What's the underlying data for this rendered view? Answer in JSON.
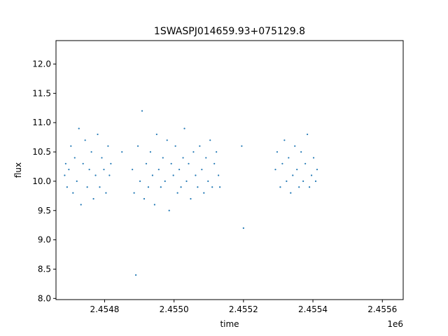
{
  "chart_data": {
    "type": "scatter",
    "title": "1SWASPJ014659.93+075129.8",
    "xlabel": "time",
    "ylabel": "flux",
    "x_offset_label": "1e6",
    "xlim": [
      2454660,
      2455660
    ],
    "ylim": [
      7.98,
      12.4
    ],
    "x_ticks": [
      2454800,
      2455000,
      2455200,
      2455400,
      2455600
    ],
    "x_tick_labels": [
      "2.4548",
      "2.4550",
      "2.4552",
      "2.4554",
      "2.4556"
    ],
    "y_ticks": [
      8.0,
      8.5,
      9.0,
      9.5,
      10.0,
      10.5,
      11.0,
      11.5,
      12.0
    ],
    "y_tick_labels": [
      "8.0",
      "8.5",
      "9.0",
      "9.5",
      "10.0",
      "10.5",
      "11.0",
      "11.5",
      "12.0"
    ],
    "grid": false,
    "legend": "none",
    "marker_color": "#1f77b4",
    "series": [
      {
        "x": [
          2454685,
          2454688,
          2454692,
          2454697,
          2454703,
          2454709,
          2454714,
          2454720,
          2454726,
          2454732,
          2454738,
          2454744,
          2454750,
          2454756,
          2454762,
          2454768,
          2454774,
          2454780,
          2454786,
          2454792,
          2454798,
          2454804,
          2454810,
          2454814,
          2454818,
          2454850,
          2454880,
          2454885,
          2454890,
          2454896,
          2454902,
          2454908,
          2454914,
          2454920,
          2454926,
          2454932,
          2454938,
          2454944,
          2454950,
          2454956,
          2454962,
          2454968,
          2454974,
          2454980,
          2454986,
          2454992,
          2454998,
          2455004,
          2455010,
          2455015,
          2455020,
          2455026,
          2455030,
          2455036,
          2455042,
          2455048,
          2455056,
          2455062,
          2455068,
          2455074,
          2455080,
          2455086,
          2455092,
          2455098,
          2455104,
          2455110,
          2455116,
          2455122,
          2455128,
          2455132,
          2455195,
          2455200,
          2455292,
          2455297,
          2455306,
          2455312,
          2455318,
          2455324,
          2455330,
          2455336,
          2455342,
          2455348,
          2455354,
          2455360,
          2455366,
          2455372,
          2455378,
          2455384,
          2455390,
          2455396,
          2455402,
          2455408,
          2455412
        ],
        "y": [
          10.1,
          10.3,
          9.9,
          10.2,
          10.6,
          9.8,
          10.4,
          10.0,
          10.9,
          9.6,
          10.3,
          10.7,
          9.9,
          10.2,
          10.5,
          9.7,
          10.1,
          10.8,
          9.9,
          10.4,
          10.2,
          9.8,
          10.6,
          10.1,
          10.3,
          10.5,
          10.2,
          9.8,
          8.4,
          10.6,
          10.0,
          11.2,
          9.7,
          10.3,
          9.9,
          10.5,
          10.1,
          9.6,
          10.8,
          10.2,
          9.9,
          10.4,
          10.0,
          10.7,
          9.5,
          10.3,
          10.1,
          10.6,
          9.8,
          10.2,
          9.9,
          10.4,
          10.9,
          10.0,
          10.3,
          9.7,
          10.5,
          10.1,
          9.9,
          10.6,
          10.2,
          9.8,
          10.4,
          10.0,
          10.7,
          9.9,
          10.3,
          10.5,
          10.1,
          9.9,
          10.6,
          9.2,
          10.2,
          10.5,
          9.9,
          10.3,
          10.7,
          10.0,
          10.4,
          9.8,
          10.1,
          10.6,
          10.2,
          9.9,
          10.5,
          10.0,
          10.3,
          10.8,
          9.9,
          10.1,
          10.4,
          10.0,
          10.2
        ]
      }
    ]
  }
}
